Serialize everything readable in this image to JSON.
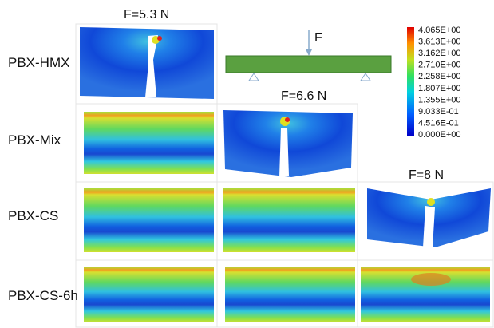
{
  "row_labels": [
    "PBX-HMX",
    "PBX-Mix",
    "PBX-CS",
    "PBX-CS-6h"
  ],
  "force_labels": [
    "F=5.3 N",
    "F=6.6 N",
    "F=8 N"
  ],
  "beam": {
    "load_label": "F"
  },
  "colorbar": {
    "labels": [
      "4.065E+00",
      "3.613E+00",
      "3.162E+00",
      "2.710E+00",
      "2.258E+00",
      "1.807E+00",
      "1.355E+00",
      "9.033E-01",
      "4.516E-01",
      "0.000E+00"
    ]
  }
}
